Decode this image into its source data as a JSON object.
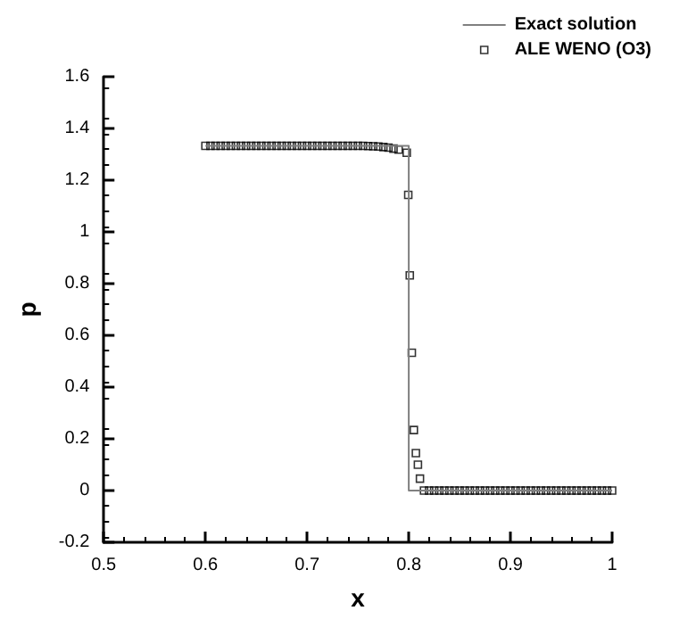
{
  "chart_data": {
    "type": "line",
    "xlabel": "x",
    "ylabel": "p",
    "xlim": [
      0.5,
      1
    ],
    "xticks": [
      0.5,
      0.6,
      0.7,
      0.8,
      0.9,
      1
    ],
    "ylim": [
      -0.2,
      1.6
    ],
    "yticks": [
      -0.2,
      0,
      0.2,
      0.4,
      0.6,
      0.8,
      1,
      1.2,
      1.4,
      1.6
    ],
    "grid": false,
    "legend": "top right",
    "series": [
      {
        "name": "Exact solution",
        "color": "#808080",
        "marker": "none",
        "line_style": "solid",
        "x": [
          0.6,
          0.8,
          0.8,
          1
        ],
        "values": [
          1.333,
          1.333,
          0,
          0
        ]
      },
      {
        "name": "ALE WENO (O3)",
        "type": "scatter",
        "color": "#000000",
        "marker": "square",
        "x": [
          0.6,
          0.605,
          0.61,
          0.615,
          0.62,
          0.625,
          0.63,
          0.635,
          0.64,
          0.645,
          0.65,
          0.655,
          0.66,
          0.665,
          0.67,
          0.675,
          0.68,
          0.685,
          0.69,
          0.695,
          0.7,
          0.705,
          0.71,
          0.715,
          0.72,
          0.725,
          0.73,
          0.735,
          0.74,
          0.745,
          0.75,
          0.755,
          0.76,
          0.765,
          0.77,
          0.775,
          0.78,
          0.785,
          0.79,
          0.798,
          0.7995,
          0.801,
          0.803,
          0.805,
          0.807,
          0.809,
          0.811,
          0.815,
          0.82,
          0.825,
          0.83,
          0.835,
          0.84,
          0.845,
          0.85,
          0.855,
          0.86,
          0.865,
          0.87,
          0.875,
          0.88,
          0.885,
          0.89,
          0.895,
          0.9,
          0.905,
          0.91,
          0.915,
          0.92,
          0.925,
          0.93,
          0.935,
          0.94,
          0.945,
          0.95,
          0.955,
          0.96,
          0.965,
          0.97,
          0.975,
          0.98,
          0.985,
          0.99,
          0.995,
          1
        ],
        "values": [
          1.333,
          1.333,
          1.333,
          1.333,
          1.333,
          1.333,
          1.333,
          1.333,
          1.333,
          1.333,
          1.333,
          1.333,
          1.333,
          1.333,
          1.333,
          1.333,
          1.333,
          1.333,
          1.333,
          1.333,
          1.333,
          1.333,
          1.333,
          1.333,
          1.333,
          1.333,
          1.333,
          1.333,
          1.333,
          1.333,
          1.333,
          1.333,
          1.332,
          1.331,
          1.33,
          1.328,
          1.326,
          1.322,
          1.318,
          1.306,
          1.143,
          0.832,
          0.533,
          0.234,
          0.145,
          0.1,
          0.046,
          0,
          0,
          0,
          0,
          0,
          0,
          0,
          0,
          0,
          0,
          0,
          0,
          0,
          0,
          0,
          0,
          0,
          0,
          0,
          0,
          0,
          0,
          0,
          0,
          0,
          0,
          0,
          0,
          0,
          0,
          0,
          0,
          0,
          0,
          0,
          0,
          0,
          0
        ]
      }
    ]
  }
}
